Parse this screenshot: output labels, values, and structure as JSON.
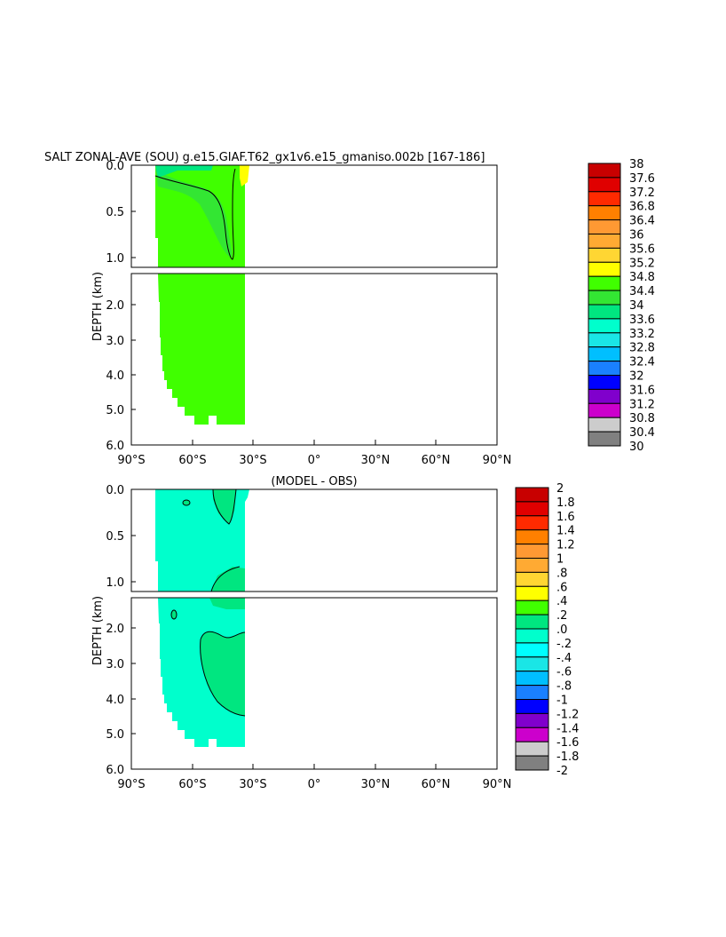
{
  "chart_data": [
    {
      "type": "heatmap",
      "title": "SALT ZONAL-AVE (SOU) g.e15.GIAF.T62_gx1v6.e15_gmaniso.002b [167-186]",
      "ylabel": "DEPTH (km)",
      "x_ticks": [
        "90°S",
        "60°S",
        "30°S",
        "0°",
        "30°N",
        "60°N",
        "90°N"
      ],
      "upper_y_ticks": [
        "0.0",
        "0.5",
        "1.0"
      ],
      "lower_y_ticks": [
        "2.0",
        "3.0",
        "4.0",
        "5.0",
        "6.0"
      ],
      "xlim": [
        -90,
        90
      ],
      "ylim_upper": [
        0,
        1.1
      ],
      "ylim_lower": [
        1.1,
        6.0
      ],
      "colorbar_labels": [
        "38",
        "37.6",
        "37.2",
        "36.8",
        "36.4",
        "36",
        "35.6",
        "35.2",
        "34.8",
        "34.4",
        "34",
        "33.6",
        "33.2",
        "32.8",
        "32.4",
        "32",
        "31.6",
        "31.2",
        "30.8",
        "30.4",
        "30"
      ],
      "colorbar_colors": [
        "#c80000",
        "#e00000",
        "#ff2a00",
        "#ff8000",
        "#ff9933",
        "#ffaa33",
        "#ffd633",
        "#ffff00",
        "#40ff00",
        "#33e633",
        "#00e680",
        "#00ffcc",
        "#1ae6e6",
        "#00bfff",
        "#1a80ff",
        "#0000ff",
        "#8000cc",
        "#cc00cc",
        "#cccccc",
        "#808080"
      ],
      "fields": [
        {
          "value_range": "34.4-34.8",
          "color": "#40ff00",
          "region": "interior 78°S-35°S, 0-5.4 km"
        },
        {
          "value_range": "34-34.4",
          "color": "#33e633",
          "region": "upper 0-1 km, 75°S-45°S"
        },
        {
          "value_range": "33.6-34",
          "color": "#00e680",
          "region": "surface near 72°S-60°S"
        },
        {
          "value_range": "34.8-35.2",
          "color": "#ffff00",
          "region": "surface near 35°S"
        }
      ]
    },
    {
      "type": "heatmap",
      "title": "(MODEL - OBS)",
      "ylabel": "DEPTH (km)",
      "x_ticks": [
        "90°S",
        "60°S",
        "30°S",
        "0°",
        "30°N",
        "60°N",
        "90°N"
      ],
      "upper_y_ticks": [
        "0.0",
        "0.5",
        "1.0"
      ],
      "lower_y_ticks": [
        "2.0",
        "3.0",
        "4.0",
        "5.0",
        "6.0"
      ],
      "xlim": [
        -90,
        90
      ],
      "ylim_upper": [
        0,
        1.1
      ],
      "ylim_lower": [
        1.1,
        6.0
      ],
      "colorbar_labels": [
        "2",
        "1.8",
        "1.6",
        "1.4",
        "1.2",
        "1",
        ".8",
        ".6",
        ".4",
        ".2",
        ".0",
        "-.2",
        "-.4",
        "-.6",
        "-.8",
        "-1",
        "-1.2",
        "-1.4",
        "-1.6",
        "-1.8",
        "-2"
      ],
      "colorbar_colors": [
        "#c80000",
        "#e00000",
        "#ff2a00",
        "#ff8000",
        "#ff9933",
        "#ffaa33",
        "#ffd633",
        "#ffff00",
        "#40ff00",
        "#00e680",
        "#00ffcc",
        "#00ffff",
        "#1ae6e6",
        "#00bfff",
        "#1a80ff",
        "#0000ff",
        "#8000cc",
        "#cc00cc",
        "#cccccc",
        "#808080"
      ],
      "fields": [
        {
          "value_range": "-.2-.0",
          "color": "#00ffcc",
          "region": "interior 78°S-35°S, 0-5.4 km"
        },
        {
          "value_range": ".0-.2",
          "color": "#00e680",
          "region": "deep 2-4.5 km near 50°S-35°S"
        }
      ]
    }
  ]
}
